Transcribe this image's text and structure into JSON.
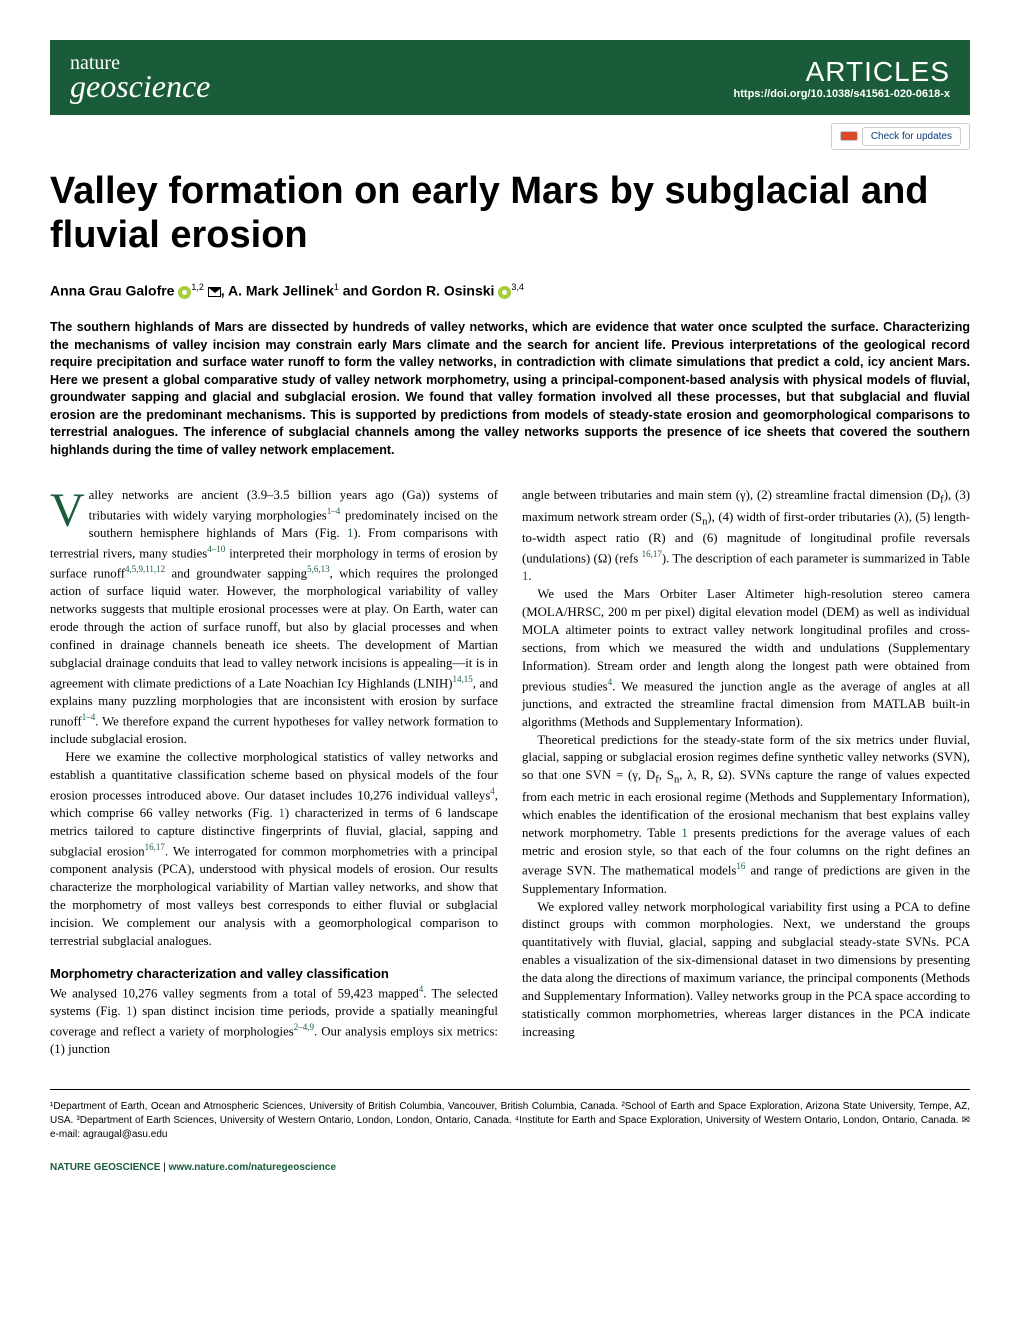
{
  "header": {
    "journal_top": "nature",
    "journal_bottom": "geoscience",
    "section": "ARTICLES",
    "doi": "https://doi.org/10.1038/s41561-020-0618-x",
    "updates_label": "Check for updates"
  },
  "title": "Valley formation on early Mars by subglacial and fluvial erosion",
  "authors": {
    "a1_name": "Anna Grau Galofre",
    "a1_aff": "1,2",
    "a2_name": "A. Mark Jellinek",
    "a2_aff": "1",
    "a3_name": "Gordon R. Osinski",
    "a3_aff": "3,4",
    "sep": ", ",
    "and": " and "
  },
  "abstract": "The southern highlands of Mars are dissected by hundreds of valley networks, which are evidence that water once sculpted the surface. Characterizing the mechanisms of valley incision may constrain early Mars climate and the search for ancient life. Previous interpretations of the geological record require precipitation and surface water runoff to form the valley networks, in contradiction with climate simulations that predict a cold, icy ancient Mars. Here we present a global comparative study of valley network morphometry, using a principal-component-based analysis with physical models of fluvial, groundwater sapping and glacial and subglacial erosion. We found that valley formation involved all these processes, but that subglacial and fluvial erosion are the predominant mechanisms. This is supported by predictions from models of steady-state erosion and geomorphological comparisons to terrestrial analogues. The inference of subglacial channels among the valley networks supports the presence of ice sheets that covered the southern highlands during the time of valley network emplacement.",
  "body": {
    "p1": "alley networks are ancient (3.9–3.5 billion years ago (Ga)) systems of tributaries with widely varying morphologies",
    "p1b": " predominately incised on the southern hemisphere highlands of Mars (Fig. ",
    "p1c": "). From comparisons with terrestrial rivers, many studies",
    "p1d": " interpreted their morphology in terms of erosion by surface runoff",
    "p1e": " and groundwater sapping",
    "p1f": ", which requires the prolonged action of surface liquid water. However, the morphological variability of valley networks suggests that multiple erosional processes were at play. On Earth, water can erode through the action of surface runoff, but also by glacial processes and when confined in drainage channels beneath ice sheets. The development of Martian subglacial drainage conduits that lead to valley network incisions is appealing—it is in agreement with climate predictions of a Late Noachian Icy Highlands (LNIH)",
    "p1g": ", and explains many puzzling morphologies that are inconsistent with erosion by surface runoff",
    "p1h": ". We therefore expand the current hypotheses for valley network formation to include subglacial erosion.",
    "p2": "Here we examine the collective morphological statistics of valley networks and establish a quantitative classification scheme based on physical models of the four erosion processes introduced above. Our dataset includes 10,276 individual valleys",
    "p2b": ", which comprise 66 valley networks (Fig. ",
    "p2c": ") characterized in terms of 6 landscape metrics tailored to capture distinctive fingerprints of fluvial, glacial, sapping and subglacial erosion",
    "p2d": ". We interrogated for common morphometries with a principal component analysis (PCA), understood with physical models of erosion. Our results characterize the morphological variability of Martian valley networks, and show that the morphometry of most valleys best corresponds to either fluvial or subglacial incision. We complement our analysis with a geomorphological comparison to terrestrial subglacial analogues.",
    "sh1": "Morphometry characterization and valley classification",
    "p3": "We analysed 10,276 valley segments from a total of 59,423 mapped",
    "p3b": ". The selected systems (Fig. ",
    "p3c": ") span distinct incision time periods, provide a spatially meaningful coverage and reflect a variety of morphologies",
    "p3d": ". Our analysis employs six metrics: (1) junction",
    "p4": "angle between tributaries and main stem (γ), (2) streamline fractal dimension (D",
    "p4b": "), (3) maximum network stream order (S",
    "p4c": "), (4) width of first-order tributaries (λ), (5) length-to-width aspect ratio (R) and (6) magnitude of longitudinal profile reversals (undulations) (Ω) (refs ",
    "p4d": "). The description of each parameter is summarized in Table ",
    "p4e": ".",
    "p5": "We used the Mars Orbiter Laser Altimeter high-resolution stereo camera (MOLA/HRSC, 200 m per pixel) digital elevation model (DEM) as well as individual MOLA altimeter points to extract valley network longitudinal profiles and cross-sections, from which we measured the width and undulations (Supplementary Information). Stream order and length along the longest path were obtained from previous studies",
    "p5b": ". We measured the junction angle as the average of angles at all junctions, and extracted the streamline fractal dimension from MATLAB built-in algorithms (Methods and Supplementary Information).",
    "p6": "Theoretical predictions for the steady-state form of the six metrics under fluvial, glacial, sapping or subglacial erosion regimes define synthetic valley networks (SVN), so that one SVN = (γ, D",
    "p6b": ", S",
    "p6c": ", λ, R, Ω). SVNs capture the range of values expected from each metric in each erosional regime (Methods and Supplementary Information), which enables the identification of the erosional mechanism that best explains valley network morphometry. Table ",
    "p6d": " presents predictions for the average values of each metric and erosion style, so that each of the four columns on the right defines an average SVN. The mathematical models",
    "p6e": " and range of predictions are given in the Supplementary Information.",
    "p7": "We explored valley network morphological variability first using a PCA to define distinct groups with common morphologies. Next, we understand the groups quantitatively with fluvial, glacial, sapping and subglacial steady-state SVNs. PCA enables a visualization of the six-dimensional dataset in two dimensions by presenting the data along the directions of maximum variance, the principal components (Methods and Supplementary Information). Valley networks group in the PCA space according to statistically common morphometries, whereas larger distances in the PCA indicate increasing",
    "refs": {
      "r1_4": "1–4",
      "r4_10": "4–10",
      "r4_5_9_11_12": "4,5,9,11,12",
      "r5_6_13": "5,6,13",
      "r14_15": "14,15",
      "r1_4b": "1–4",
      "r4": "4",
      "r16_17": "16,17",
      "r2_4_9": "2–4,9",
      "r16": "16",
      "fig1": "1",
      "tab1": "1"
    },
    "sub_f": "f",
    "sub_n": "n"
  },
  "affiliations": "¹Department of Earth, Ocean and Atmospheric Sciences, University of British Columbia, Vancouver, British Columbia, Canada. ²School of Earth and Space Exploration, Arizona State University, Tempe, AZ, USA. ³Department of Earth Sciences, University of Western Ontario, London, London, Ontario, Canada. ⁴Institute for Earth and Space Exploration, University of Western Ontario, London, Ontario, Canada. ✉e-mail: agraugal@asu.edu",
  "footer": {
    "journal": "NATURE GEOSCIENCE",
    "url": "www.nature.com/naturegeoscience"
  },
  "colors": {
    "brand_green": "#1a5c3a",
    "orcid_green": "#a6ce39"
  }
}
